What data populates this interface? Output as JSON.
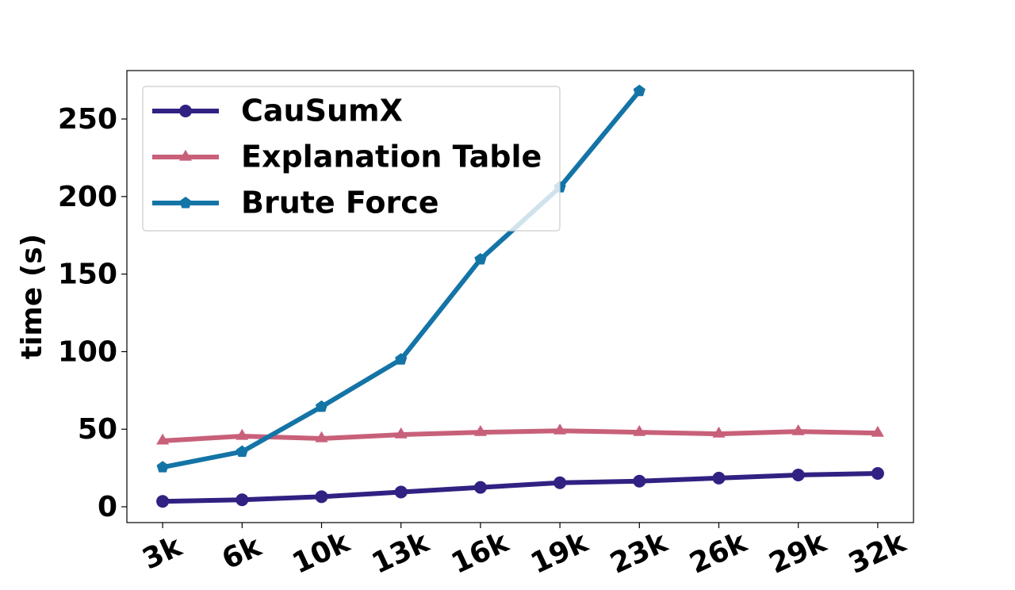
{
  "chart_data": {
    "type": "line",
    "y_label": "time (s)",
    "categories": [
      "3k",
      "6k",
      "10k",
      "13k",
      "16k",
      "19k",
      "23k",
      "26k",
      "29k",
      "32k"
    ],
    "series": [
      {
        "name": "CauSumX",
        "color": "#312182",
        "marker": "circle",
        "values": [
          3.5,
          4.5,
          6.5,
          9.5,
          12.5,
          15.5,
          16.5,
          18.5,
          20.5,
          21.5
        ]
      },
      {
        "name": "Explanation Table",
        "color": "#c8607a",
        "marker": "triangle",
        "values": [
          42.5,
          45.5,
          44,
          46.5,
          48,
          49,
          48,
          47,
          48.5,
          47.5
        ]
      },
      {
        "name": "Brute Force",
        "color": "#1474a6",
        "marker": "pentagon",
        "values": [
          25.5,
          35.5,
          64.5,
          95,
          159.5,
          206,
          268,
          null,
          null,
          null
        ]
      }
    ],
    "ylim": [
      -10.2,
      281.2
    ],
    "yticks": [
      0,
      50,
      100,
      150,
      200,
      250
    ],
    "legend": "upper left",
    "grid": false
  }
}
